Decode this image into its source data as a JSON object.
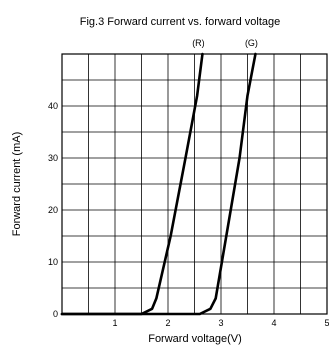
{
  "chart_data": {
    "type": "line",
    "title": "Fig.3 Forward current vs. forward voltage",
    "xlabel": "Forward voltage(V)",
    "ylabel": "Forward current (mA)",
    "xlim": [
      0,
      5
    ],
    "ylim": [
      0,
      50
    ],
    "x_ticks": [
      1,
      2,
      3,
      4,
      5
    ],
    "y_ticks": [
      0,
      10,
      20,
      30,
      40
    ],
    "grid": true,
    "series": [
      {
        "name": "(R)",
        "x": [
          0,
          1.5,
          1.7,
          1.78,
          2.05,
          2.33,
          2.55,
          2.65
        ],
        "y": [
          0,
          0,
          1,
          3,
          15,
          30,
          42,
          50
        ]
      },
      {
        "name": "(G)",
        "x": [
          0,
          2.6,
          2.8,
          2.9,
          3.1,
          3.35,
          3.5,
          3.65
        ],
        "y": [
          0,
          0,
          1,
          3,
          15,
          30,
          42,
          50
        ]
      }
    ]
  }
}
